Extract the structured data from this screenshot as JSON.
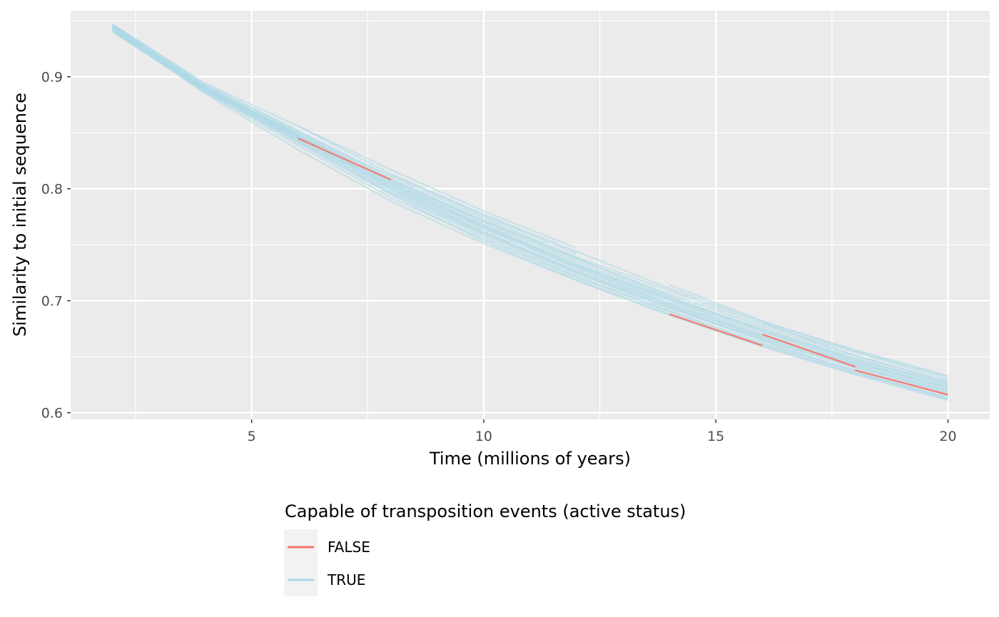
{
  "chart_data": {
    "type": "line",
    "xlabel": "Time (millions of years)",
    "ylabel": "Similarity to initial sequence",
    "xlim": [
      1.1,
      20.9
    ],
    "ylim": [
      0.594,
      0.959
    ],
    "x_ticks": [
      5,
      10,
      15,
      20
    ],
    "x_tick_labels": [
      "5",
      "10",
      "15",
      "20"
    ],
    "x_minor_ticks": [
      2.5,
      7.5,
      12.5,
      17.5
    ],
    "y_ticks": [
      0.6,
      0.7,
      0.8,
      0.9
    ],
    "y_tick_labels": [
      "0.6",
      "0.7",
      "0.8",
      "0.9"
    ],
    "y_minor_ticks": [
      0.65,
      0.75,
      0.85,
      0.95
    ],
    "grid": true,
    "legend": {
      "title": "Capable of transposition events (active status)",
      "position": "bottom",
      "entries": [
        {
          "label": "FALSE",
          "color": "#F8766D"
        },
        {
          "label": "TRUE",
          "color": "#ADD8E6"
        }
      ]
    },
    "series": [
      {
        "name": "TRUE",
        "x": [
          2,
          4,
          6,
          8,
          10,
          12,
          14,
          16,
          18,
          20
        ],
        "y": [
          0.944,
          0.889,
          0.846,
          0.801,
          0.762,
          0.726,
          0.695,
          0.664,
          0.637,
          0.613
        ]
      },
      {
        "name": "TRUE",
        "x": [
          2,
          4,
          6,
          8,
          10,
          12,
          14,
          16,
          18,
          20
        ],
        "y": [
          0.947,
          0.893,
          0.852,
          0.809,
          0.771,
          0.737,
          0.706,
          0.677,
          0.651,
          0.627
        ]
      },
      {
        "name": "TRUE",
        "x": [
          2,
          4,
          6,
          8,
          10,
          12,
          14,
          16,
          18,
          20
        ],
        "y": [
          0.941,
          0.886,
          0.839,
          0.792,
          0.755,
          0.721,
          0.69,
          0.661,
          0.636,
          0.612
        ]
      },
      {
        "name": "TRUE",
        "x": [
          2,
          4,
          6,
          8,
          10,
          12,
          14,
          16,
          18,
          20
        ],
        "y": [
          0.945,
          0.891,
          0.849,
          0.806,
          0.768,
          0.733,
          0.701,
          0.672,
          0.646,
          0.622
        ]
      },
      {
        "name": "TRUE",
        "x": [
          2,
          4,
          6,
          8,
          10,
          12,
          14,
          16,
          18,
          20
        ],
        "y": [
          0.943,
          0.888,
          0.843,
          0.797,
          0.759,
          0.724,
          0.693,
          0.665,
          0.64,
          0.617
        ]
      },
      {
        "name": "TRUE",
        "x": [
          2,
          4,
          6,
          8,
          10,
          12,
          14,
          16,
          18,
          20
        ],
        "y": [
          0.946,
          0.892,
          0.851,
          0.811,
          0.774,
          0.739,
          0.709,
          0.679,
          0.654,
          0.63
        ]
      },
      {
        "name": "TRUE",
        "x": [
          2,
          4,
          6,
          8,
          10,
          12,
          14,
          16,
          18,
          20
        ],
        "y": [
          0.942,
          0.887,
          0.841,
          0.795,
          0.753,
          0.719,
          0.688,
          0.66,
          0.635,
          0.614
        ]
      },
      {
        "name": "TRUE",
        "x": [
          2,
          4,
          6,
          8,
          10,
          12,
          14,
          16,
          18,
          20
        ],
        "y": [
          0.944,
          0.89,
          0.847,
          0.803,
          0.765,
          0.73,
          0.698,
          0.669,
          0.643,
          0.62
        ]
      },
      {
        "name": "TRUE",
        "x": [
          2,
          4,
          6,
          8,
          10,
          12,
          14,
          16,
          18,
          20
        ],
        "y": [
          0.94,
          0.887,
          0.845,
          0.8,
          0.761,
          0.727,
          0.696,
          0.667,
          0.642,
          0.618
        ]
      },
      {
        "name": "TRUE",
        "x": [
          2,
          4,
          6,
          8,
          10,
          12,
          14,
          16,
          18,
          20
        ],
        "y": [
          0.946,
          0.89,
          0.848,
          0.807,
          0.77,
          0.735,
          0.703,
          0.675,
          0.649,
          0.625
        ]
      },
      {
        "name": "TRUE",
        "x": [
          2,
          4,
          6,
          8,
          10,
          12,
          14,
          16,
          18,
          20
        ],
        "y": [
          0.943,
          0.889,
          0.846,
          0.804,
          0.767,
          0.731,
          0.7,
          0.67,
          0.645,
          0.621
        ]
      },
      {
        "name": "TRUE",
        "x": [
          2,
          4,
          6,
          8,
          10,
          12,
          14,
          16,
          18,
          20
        ],
        "y": [
          0.945,
          0.888,
          0.844,
          0.799,
          0.76,
          0.725,
          0.694,
          0.666,
          0.641,
          0.619
        ]
      },
      {
        "name": "TRUE",
        "x": [
          2,
          4,
          6,
          8,
          10,
          12,
          14,
          16,
          18,
          20
        ],
        "y": [
          0.947,
          0.894,
          0.856,
          0.813,
          0.777,
          0.744,
          0.711,
          0.681,
          0.656,
          0.633
        ]
      },
      {
        "name": "TRUE",
        "x": [
          2,
          4,
          6,
          8,
          10,
          12,
          14,
          16,
          18,
          20
        ],
        "y": [
          0.942,
          0.885,
          0.835,
          0.789,
          0.751,
          0.718,
          0.687,
          0.659,
          0.634,
          0.611
        ]
      },
      {
        "name": "TRUE",
        "x": [
          2,
          4,
          6,
          8,
          10,
          12,
          14,
          16,
          18,
          20
        ],
        "y": [
          0.944,
          0.889,
          0.85,
          0.808,
          0.772,
          0.738,
          0.704,
          0.673,
          0.647,
          0.624
        ]
      },
      {
        "name": "TRUE",
        "x": [
          2,
          4,
          6,
          8,
          10,
          12,
          14,
          16,
          18,
          20
        ],
        "y": [
          0.941,
          0.888,
          0.842,
          0.796,
          0.757,
          0.722,
          0.691,
          0.662,
          0.638,
          0.616
        ]
      },
      {
        "name": "TRUE",
        "x": [
          2,
          4,
          6,
          8,
          10,
          12,
          14,
          16,
          18,
          20
        ],
        "y": [
          0.945,
          0.891,
          0.848,
          0.805,
          0.766,
          0.732,
          0.702,
          0.674,
          0.648,
          0.626
        ]
      },
      {
        "name": "TRUE",
        "x": [
          2,
          4,
          6,
          8,
          10,
          12,
          14,
          16,
          18,
          20
        ],
        "y": [
          0.943,
          0.89,
          0.847,
          0.802,
          0.764,
          0.729,
          0.697,
          0.668,
          0.644,
          0.623
        ]
      },
      {
        "name": "TRUE",
        "x": [
          6,
          8,
          10,
          12
        ],
        "y": [
          0.856,
          0.817,
          0.78,
          0.747
        ]
      },
      {
        "name": "TRUE",
        "x": [
          8,
          10,
          12
        ],
        "y": [
          0.813,
          0.776,
          0.742
        ]
      },
      {
        "name": "TRUE",
        "x": [
          14,
          16,
          18,
          20
        ],
        "y": [
          0.714,
          0.682,
          0.655,
          0.632
        ]
      },
      {
        "name": "TRUE",
        "x": [
          16,
          18,
          20
        ],
        "y": [
          0.68,
          0.651,
          0.628
        ]
      },
      {
        "name": "FALSE",
        "x": [
          6,
          8
        ],
        "y": [
          0.845,
          0.808
        ]
      },
      {
        "name": "FALSE",
        "x": [
          14,
          16
        ],
        "y": [
          0.688,
          0.66
        ]
      },
      {
        "name": "FALSE",
        "x": [
          16,
          18
        ],
        "y": [
          0.67,
          0.641
        ]
      },
      {
        "name": "FALSE",
        "x": [
          18,
          20
        ],
        "y": [
          0.638,
          0.616
        ]
      }
    ]
  }
}
